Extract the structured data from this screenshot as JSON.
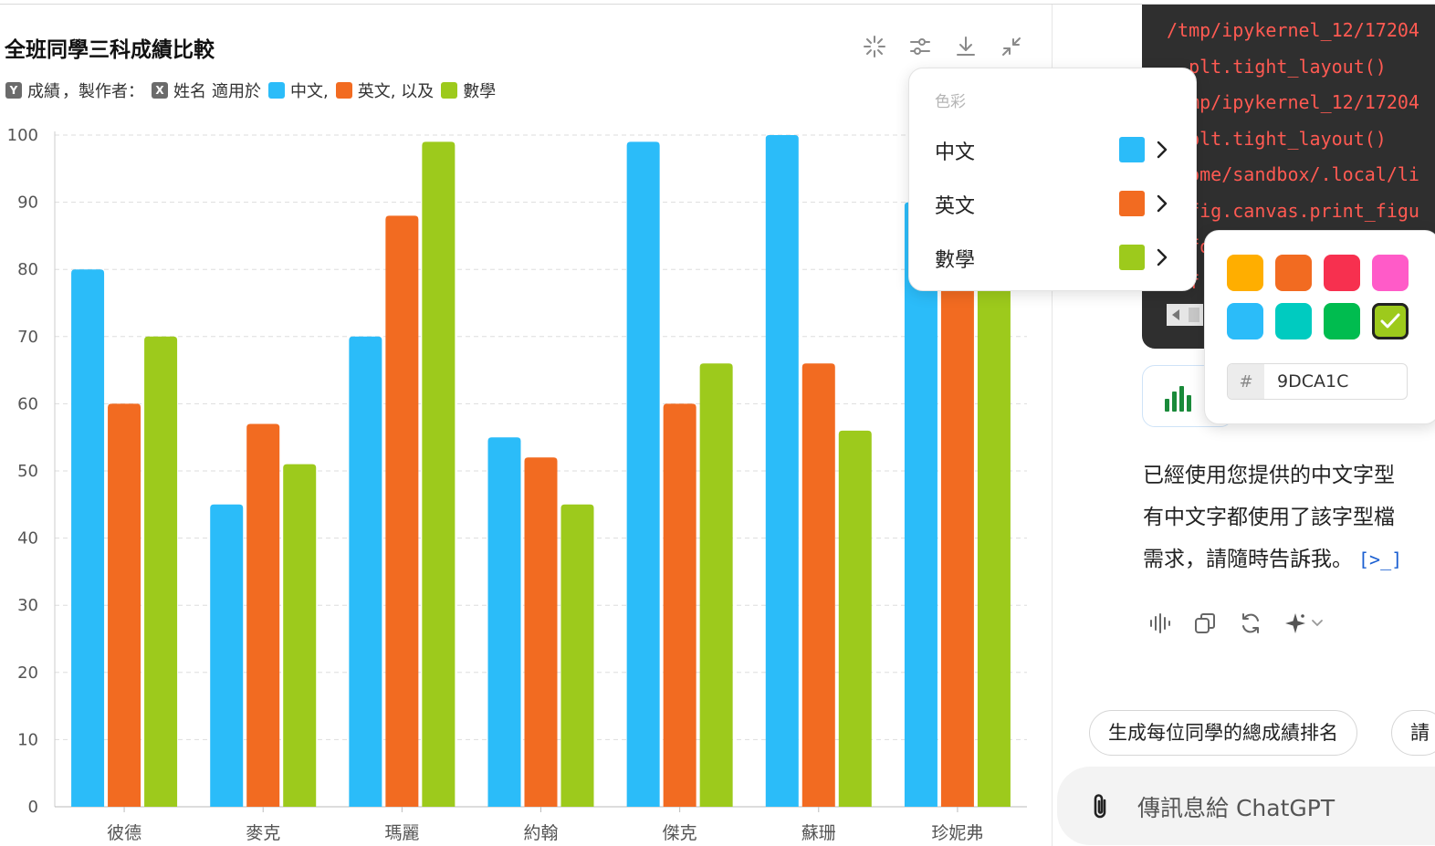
{
  "chart_panel": {
    "title": "全班同學三科成績比較",
    "tools": [
      "sparkle-icon",
      "sliders-icon",
      "download-icon",
      "collapse-icon"
    ]
  },
  "legend": {
    "y_key": "Y",
    "y_label": "成績",
    "by_text": "，製作者：",
    "x_key": "X",
    "x_label": "姓名",
    "apply_text": "適用於",
    "s1": "中文,",
    "s2": "英文, 以及",
    "s3": "數學"
  },
  "chart_data": {
    "type": "bar",
    "title": "全班同學三科成績比較",
    "xlabel": "",
    "ylabel": "",
    "ylim": [
      0,
      100
    ],
    "yticks": [
      0,
      10,
      20,
      30,
      40,
      50,
      60,
      70,
      80,
      90,
      100
    ],
    "grid": true,
    "categories": [
      "彼德",
      "麥克",
      "瑪麗",
      "約翰",
      "傑克",
      "蘇珊",
      "珍妮弗"
    ],
    "series": [
      {
        "name": "中文",
        "color": "#2BBCF9",
        "values": [
          80,
          45,
          70,
          55,
          99,
          100,
          90
        ]
      },
      {
        "name": "英文",
        "color": "#F26B21",
        "values": [
          60,
          57,
          88,
          52,
          60,
          66,
          80
        ]
      },
      {
        "name": "數學",
        "color": "#9DCA1C",
        "values": [
          70,
          51,
          99,
          45,
          66,
          56,
          82
        ]
      }
    ]
  },
  "color_menu": {
    "header": "色彩",
    "items": [
      {
        "label": "中文",
        "color": "#2BBCF9"
      },
      {
        "label": "英文",
        "color": "#F26B21"
      },
      {
        "label": "數學",
        "color": "#9DCA1C"
      }
    ]
  },
  "color_picker": {
    "swatches": [
      "#FFAE00",
      "#F26B21",
      "#F7304F",
      "#FF5BC8",
      "#2BBCF9",
      "#00CBC0",
      "#00BC4F",
      "#9DCA1C"
    ],
    "selected_index": 7,
    "hash": "#",
    "hex_value": "9DCA1C"
  },
  "code_output": {
    "lines": [
      "/tmp/ipykernel_12/17204",
      "  plt.tight_layout()",
      "/tmp/ipykernel_12/17204",
      "  plt.tight_layout()",
      "/home/sandbox/.local/li",
      "  fig.canvas.print_figu",
      "  fo",
      "  f"
    ]
  },
  "reply": {
    "line1": "已經使用您提供的中文字型",
    "line2": "有中文字都使用了該字型檔",
    "line3": "需求，請隨時告訴我。",
    "ref_icon": "[>_]"
  },
  "actions": [
    "read-aloud-icon",
    "copy-icon",
    "regenerate-icon",
    "sparkle-menu-icon"
  ],
  "suggestions": [
    "生成每位同學的總成績排名",
    "請"
  ],
  "composer": {
    "placeholder": "傳訊息給 ChatGPT"
  }
}
